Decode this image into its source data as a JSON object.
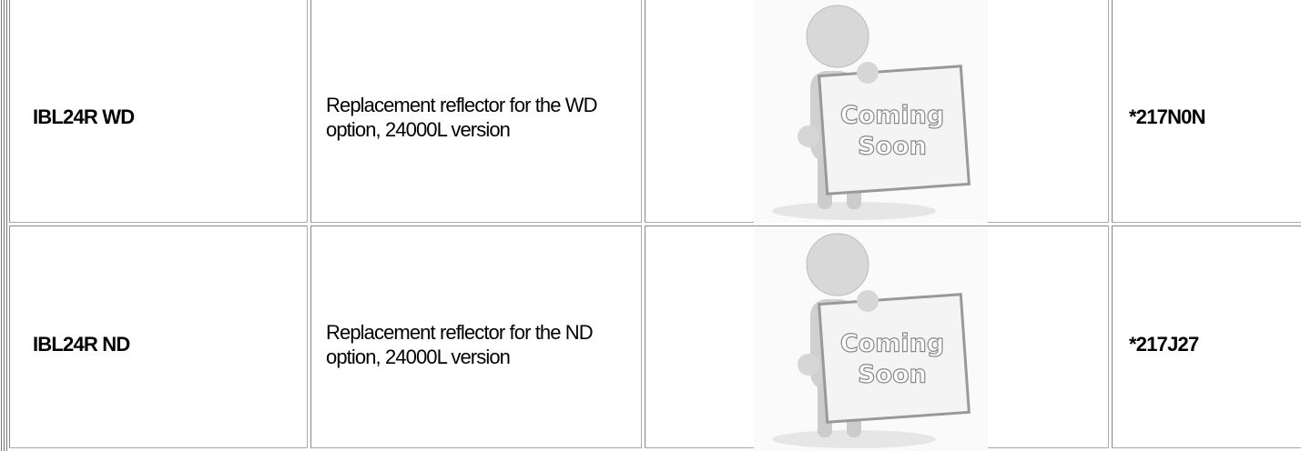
{
  "table": {
    "rows": [
      {
        "part": "IBL24R WD",
        "description": "Replacement reflector for the WD option, 24000L version",
        "image_text": [
          "Coming",
          "Soon"
        ],
        "code": "*217N0N"
      },
      {
        "part": "IBL24R ND",
        "description": "Replacement reflector for the ND option, 24000L version",
        "image_text": [
          "Coming",
          "Soon"
        ],
        "code": "*217J27"
      }
    ]
  }
}
